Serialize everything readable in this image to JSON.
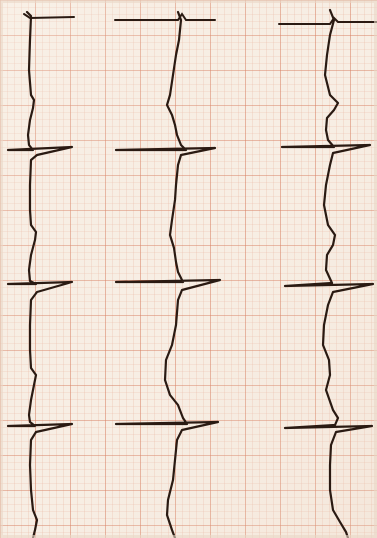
{
  "image": {
    "subject": "ecg-rhythm-strip-photo",
    "paper_color": "#f7eee4",
    "minor_grid_color": "#e9b7a3",
    "major_grid_color": "#d77f62",
    "trace_color": "#2a1a12",
    "trace_count": 3
  }
}
